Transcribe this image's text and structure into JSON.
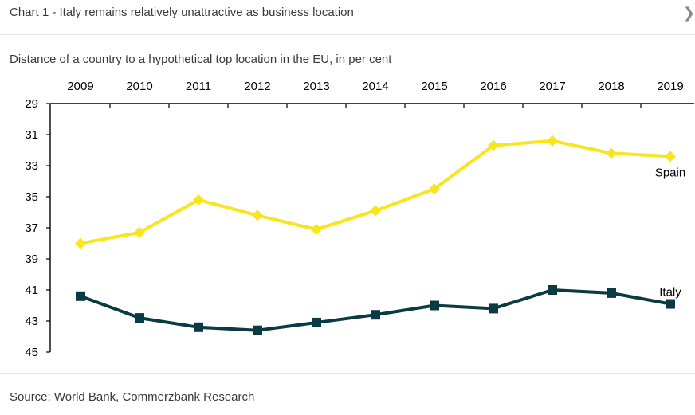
{
  "header": {
    "title": "Chart 1 - Italy remains relatively unattractive as business location",
    "close_icon": "chevron-right-icon"
  },
  "subtitle": "Distance of a country to a hypothetical top location in the EU, in per cent",
  "source": "Source: World Bank, Commerzbank Research",
  "chart_data": {
    "type": "line",
    "title": "Chart 1 - Italy remains relatively unattractive as business location",
    "subtitle": "Distance of a country to a hypothetical top location in the EU, in per cent",
    "categories": [
      "2009",
      "2010",
      "2011",
      "2012",
      "2013",
      "2014",
      "2015",
      "2016",
      "2017",
      "2018",
      "2019"
    ],
    "y_ticks": [
      "29",
      "31",
      "33",
      "35",
      "37",
      "39",
      "41",
      "43",
      "45"
    ],
    "ylim": [
      29,
      45
    ],
    "y_inverted": true,
    "x_axis_position": "top",
    "grid": false,
    "series": [
      {
        "name": "Spain",
        "color": "#f7e51d",
        "marker": "diamond",
        "values": [
          38.0,
          37.3,
          35.2,
          36.2,
          37.1,
          35.9,
          34.5,
          31.7,
          31.4,
          32.2,
          32.4
        ]
      },
      {
        "name": "Italy",
        "color": "#0b3b42",
        "marker": "square",
        "values": [
          41.4,
          42.8,
          43.4,
          43.6,
          43.1,
          42.6,
          42.0,
          42.2,
          41.0,
          41.2,
          41.9
        ]
      }
    ]
  }
}
